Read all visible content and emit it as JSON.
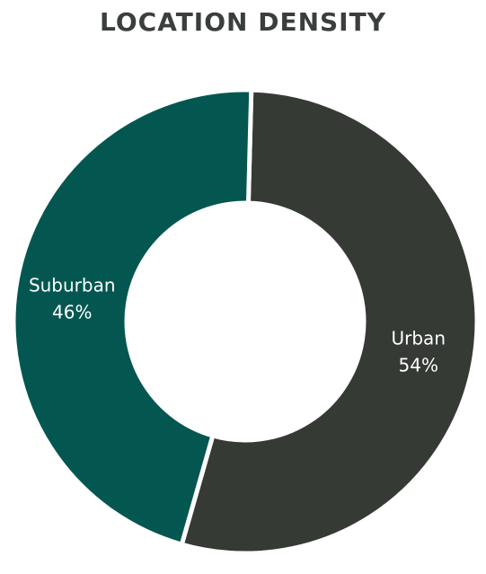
{
  "chart_data": {
    "type": "pie",
    "title": "LOCATION DENSITY",
    "donut": true,
    "categories": [
      "Urban",
      "Suburban"
    ],
    "values": [
      54,
      46
    ],
    "value_labels": [
      "54%",
      "46%"
    ],
    "colors": [
      "#353a35",
      "#045750"
    ]
  }
}
